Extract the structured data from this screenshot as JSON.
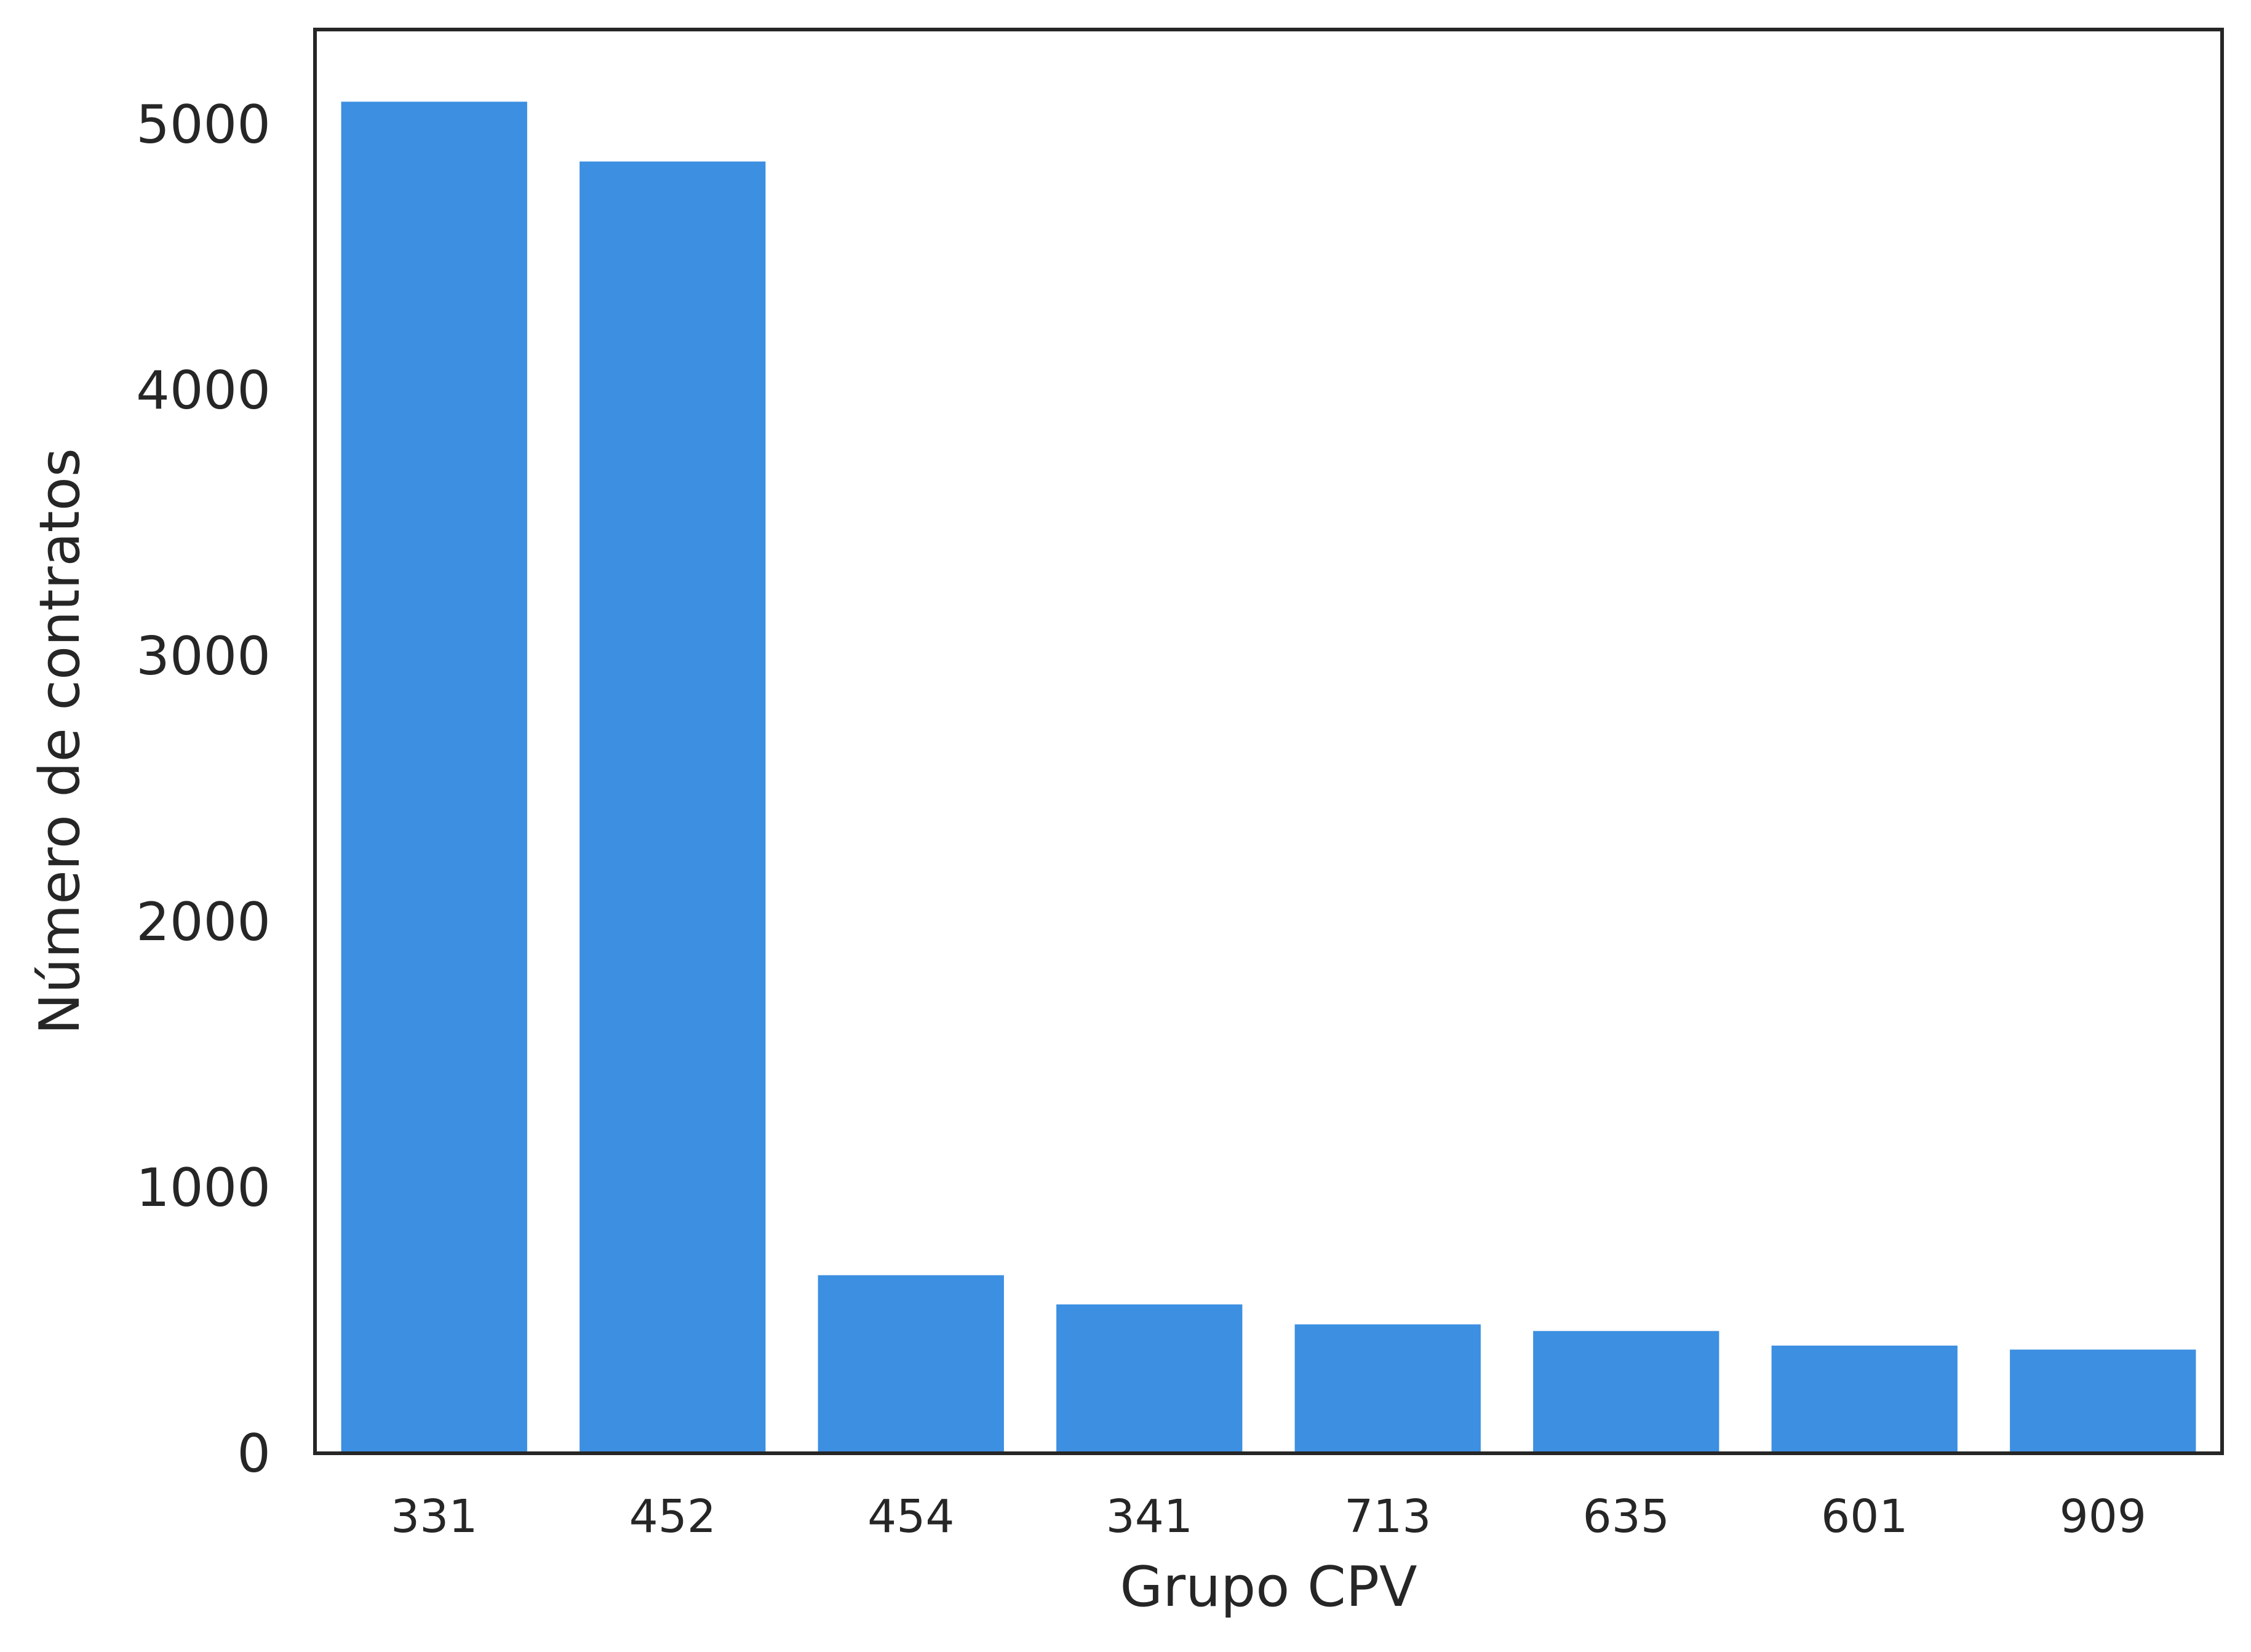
{
  "chart_data": {
    "type": "bar",
    "title": "",
    "xlabel": "Grupo CPV",
    "ylabel": "Número de contratos",
    "categories": [
      "331",
      "452",
      "454",
      "341",
      "713",
      "635",
      "601",
      "909"
    ],
    "values": [
      5085,
      4860,
      670,
      560,
      485,
      460,
      405,
      390
    ],
    "ylim": [
      0,
      5350
    ],
    "yticks": [
      0,
      1000,
      2000,
      3000,
      4000,
      5000
    ],
    "grid": false,
    "legend": "none",
    "colors": {
      "bar": "#3c8fe1",
      "frame": "#262626",
      "text": "#262626"
    }
  }
}
